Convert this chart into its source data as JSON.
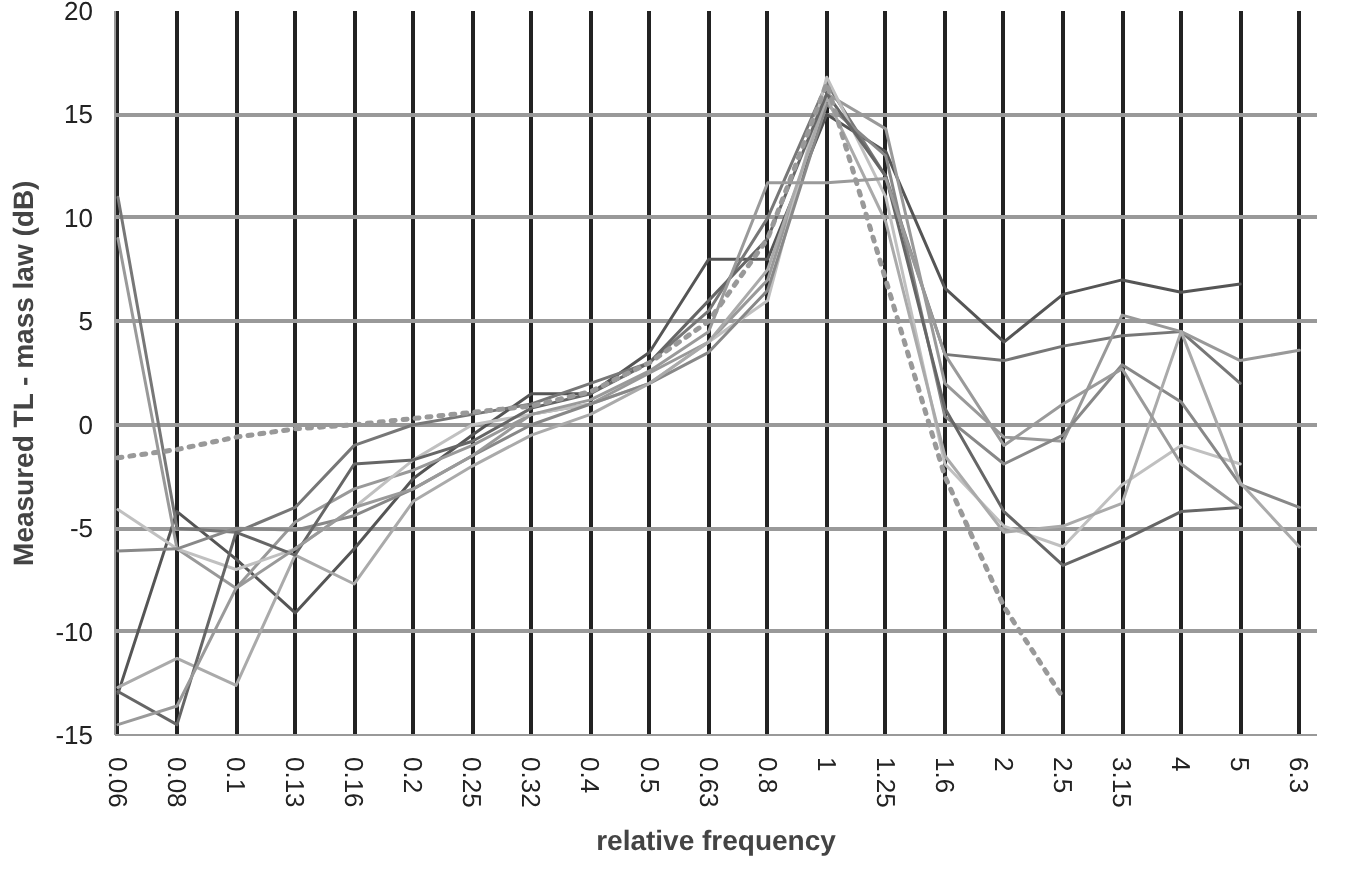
{
  "chart_data": {
    "type": "line",
    "xlabel": "relative frequency",
    "ylabel": "Measured TL - mass law (dB)",
    "categories": [
      "0.06",
      "0.08",
      "0.1",
      "0.13",
      "0.16",
      "0.2",
      "0.25",
      "0.32",
      "0.4",
      "0.5",
      "0.63",
      "0.8",
      "1",
      "1.25",
      "1.6",
      "2",
      "2.5",
      "3.15",
      "4",
      "5",
      "6.3"
    ],
    "ylim": [
      -15,
      20
    ],
    "yticks": [
      -15,
      -10,
      -5,
      0,
      5,
      10,
      15,
      20
    ],
    "grid": true,
    "marker": "none",
    "series": [
      {
        "color": "#555555",
        "values": [
          -13,
          -4.2,
          -6.5,
          -9.1,
          -6,
          -2.6,
          -0.5,
          1.5,
          1.5,
          3.5,
          8,
          8,
          15,
          13.2,
          6.6,
          4.0,
          6.3,
          7.0,
          6.4,
          6.8,
          null
        ]
      },
      {
        "color": "#777777",
        "values": [
          11,
          -5,
          -5.2,
          -4.0,
          -1.0,
          0,
          0.5,
          1.0,
          2.0,
          3.0,
          5.5,
          10,
          16.5,
          12,
          3.4,
          3.1,
          3.8,
          4.3,
          4.5,
          2.0,
          null
        ]
      },
      {
        "color": "#999999",
        "values": [
          9,
          -6,
          -7.9,
          -4.7,
          -3.1,
          -2.2,
          -1,
          0.5,
          1,
          2.5,
          4,
          7,
          16,
          14.3,
          2.0,
          -0.6,
          -0.8,
          5.3,
          4.5,
          3.1,
          3.6
        ]
      },
      {
        "color": "#c0c0c0",
        "values": [
          -4.1,
          -6.0,
          -7.0,
          -6.0,
          -4.0,
          -1.7,
          0,
          0.5,
          1,
          2,
          4,
          6,
          16.8,
          11,
          -1.9,
          -4.9,
          -5.9,
          -2.9,
          -1.0,
          -1.9,
          null
        ]
      },
      {
        "color": "#888888",
        "values": [
          -6.1,
          -6.0,
          -5.0,
          -5.1,
          -4.4,
          -3.1,
          -1.5,
          0,
          1,
          2,
          3.5,
          6.5,
          15.5,
          13,
          0.4,
          -1.9,
          -0.5,
          2.9,
          1.1,
          -2.9,
          -4.0
        ]
      },
      {
        "color": "#aaaaaa",
        "values": [
          -12.7,
          -11.3,
          -12.6,
          -6.3,
          -7.7,
          -3.7,
          -2,
          -0.5,
          0.5,
          2,
          4,
          7.5,
          15.8,
          9.8,
          -1.5,
          -5.2,
          -4.9,
          -3.8,
          4.5,
          -2.8,
          -5.9
        ]
      },
      {
        "color": "#666666",
        "values": [
          -12.9,
          -14.5,
          -5.2,
          -6.3,
          -1.9,
          -1.7,
          -0.8,
          0.8,
          1.5,
          3,
          6,
          9,
          16,
          12,
          0.8,
          -4.2,
          -6.8,
          -5.6,
          -4.2,
          -4.0,
          null
        ]
      },
      {
        "color": "#9a9a9a",
        "values": [
          -14.5,
          -13.6,
          -7.9,
          -6,
          -4,
          -3.1,
          -1.5,
          0.5,
          1.2,
          2.6,
          4.5,
          11.7,
          11.7,
          11.9,
          3.4,
          -1.0,
          1.0,
          2.7,
          -1.9,
          -4.0,
          null
        ]
      },
      {
        "color": "#999999",
        "line_style": "dotted",
        "values": [
          -1.6,
          -1.2,
          -0.6,
          -0.2,
          0,
          0.3,
          0.6,
          0.9,
          1.6,
          3,
          5,
          9,
          16.5,
          7,
          -2.5,
          -8.8,
          -13.2,
          null,
          null,
          null,
          null
        ]
      }
    ]
  }
}
